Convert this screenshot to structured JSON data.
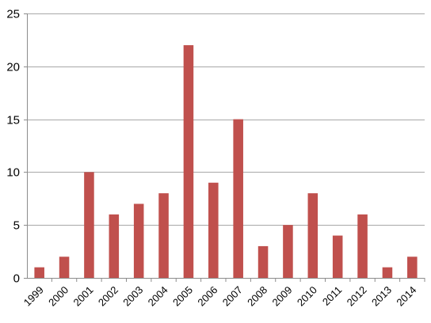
{
  "chart_data": {
    "type": "bar",
    "categories": [
      "1999",
      "2000",
      "2001",
      "2002",
      "2003",
      "2004",
      "2005",
      "2006",
      "2007",
      "2008",
      "2009",
      "2010",
      "2011",
      "2012",
      "2013",
      "2014"
    ],
    "values": [
      1,
      2,
      10,
      6,
      7,
      8,
      22,
      9,
      15,
      3,
      5,
      8,
      4,
      6,
      1,
      2
    ],
    "ylim": [
      0,
      25
    ],
    "yticks": [
      0,
      5,
      10,
      15,
      20,
      25
    ],
    "grid": true,
    "bar_color": "#c0504d",
    "title": "",
    "xlabel": "",
    "ylabel": ""
  }
}
